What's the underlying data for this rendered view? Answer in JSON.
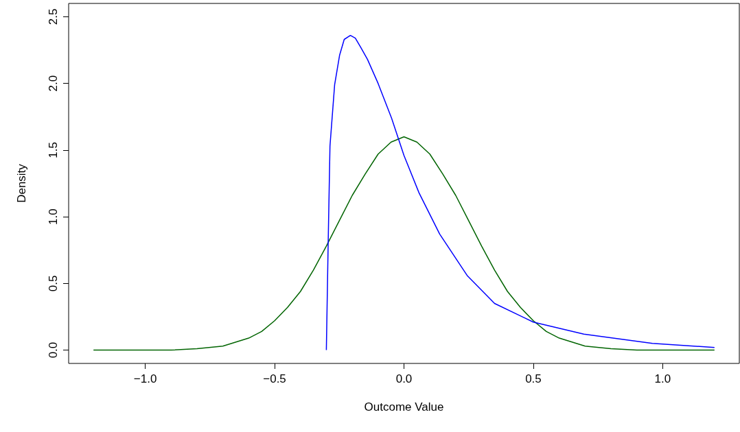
{
  "chart_data": {
    "type": "line",
    "xlabel": "Outcome Value",
    "ylabel": "Density",
    "xlim": [
      -1.296,
      1.296
    ],
    "ylim": [
      -0.1,
      2.6
    ],
    "xticks": [
      {
        "value": -1,
        "label": "−1.0"
      },
      {
        "value": -0.5,
        "label": "−0.5"
      },
      {
        "value": 0,
        "label": "0.0"
      },
      {
        "value": 0.5,
        "label": "0.5"
      },
      {
        "value": 1,
        "label": "1.0"
      }
    ],
    "yticks": [
      {
        "value": 0,
        "label": "0.0"
      },
      {
        "value": 0.5,
        "label": "0.5"
      },
      {
        "value": 1,
        "label": "1.0"
      },
      {
        "value": 1.5,
        "label": "1.5"
      },
      {
        "value": 2,
        "label": "2.0"
      },
      {
        "value": 2.5,
        "label": "2.5"
      }
    ],
    "marker": "none",
    "line_style": "solid",
    "series": [
      {
        "color": "#006400",
        "x": [
          -1.2,
          -0.9,
          -0.8,
          -0.7,
          -0.6,
          -0.55,
          -0.5,
          -0.45,
          -0.4,
          -0.35,
          -0.3,
          -0.25,
          -0.2,
          -0.15,
          -0.1,
          -0.05,
          0,
          0.05,
          0.1,
          0.15,
          0.2,
          0.25,
          0.3,
          0.35,
          0.4,
          0.45,
          0.5,
          0.55,
          0.6,
          0.7,
          0.8,
          0.9,
          1.2
        ],
        "values": [
          0,
          0,
          0.01,
          0.03,
          0.09,
          0.14,
          0.22,
          0.32,
          0.44,
          0.6,
          0.78,
          0.97,
          1.16,
          1.32,
          1.47,
          1.56,
          1.6,
          1.56,
          1.47,
          1.32,
          1.16,
          0.97,
          0.78,
          0.6,
          0.44,
          0.32,
          0.22,
          0.14,
          0.09,
          0.03,
          0.01,
          0,
          0
        ]
      },
      {
        "color": "#0000ff",
        "x": [
          -0.3,
          -0.293,
          -0.286,
          -0.268,
          -0.249,
          -0.231,
          -0.207,
          -0.188,
          -0.167,
          -0.141,
          -0.1,
          -0.048,
          0,
          0.058,
          0.138,
          0.244,
          0.35,
          0.5,
          0.695,
          0.96,
          1.2
        ],
        "values": [
          0,
          0.8,
          1.53,
          1.99,
          2.21,
          2.33,
          2.36,
          2.34,
          2.27,
          2.18,
          2.0,
          1.74,
          1.46,
          1.18,
          0.87,
          0.56,
          0.35,
          0.21,
          0.12,
          0.05,
          0.02
        ]
      }
    ]
  }
}
